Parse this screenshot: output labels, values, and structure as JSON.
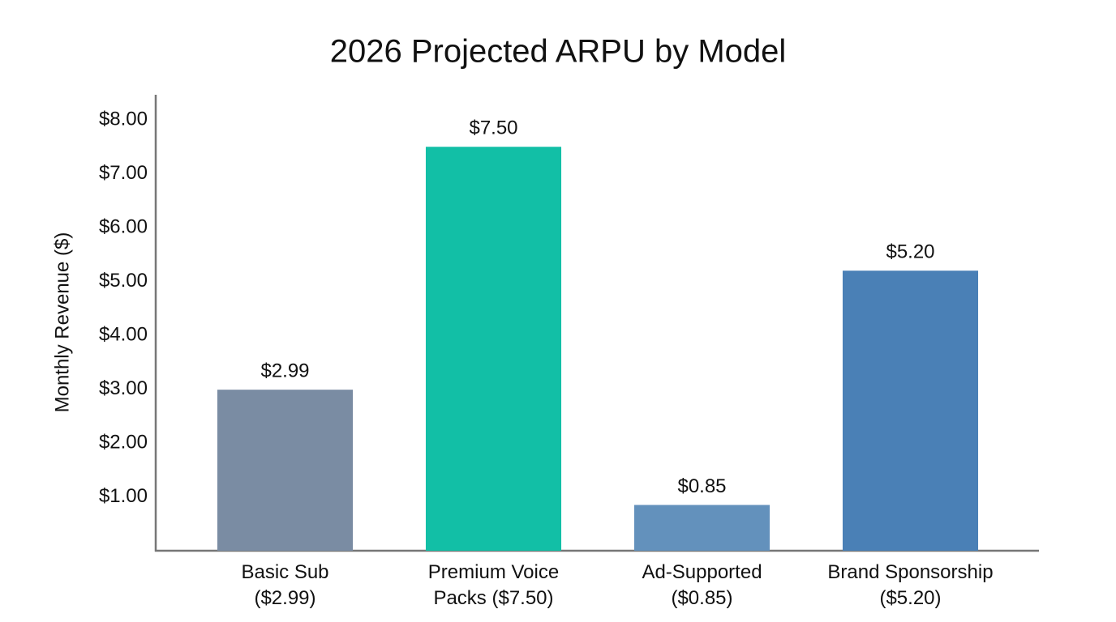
{
  "chart_data": {
    "type": "bar",
    "title": "2026 Projected ARPU by Model",
    "y_label": "Monthly Revenue ($)",
    "categories": [
      "Basic Sub\n($2.99)",
      "Premium Voice\nPacks ($7.50)",
      "Ad-Supported\n($0.85)",
      "Brand Sponsorship\n($5.20)"
    ],
    "values": [
      2.99,
      7.5,
      0.85,
      5.2
    ],
    "value_labels": [
      "$2.99",
      "$7.50",
      "$0.85",
      "$5.20"
    ],
    "colors": [
      "#7a8ca3",
      "#12bfa6",
      "#6391bc",
      "#4a80b6"
    ],
    "ylim": [
      0,
      8.5
    ],
    "yticks": [
      {
        "value": 1,
        "label": "$1.00"
      },
      {
        "value": 2,
        "label": "$2.00"
      },
      {
        "value": 3,
        "label": "$3.00"
      },
      {
        "value": 4,
        "label": "$4.00"
      },
      {
        "value": 5,
        "label": "$5.00"
      },
      {
        "value": 6,
        "label": "$6.00"
      },
      {
        "value": 7,
        "label": "$7.00"
      },
      {
        "value": 8,
        "label": "$8.00"
      }
    ],
    "grid": false
  }
}
